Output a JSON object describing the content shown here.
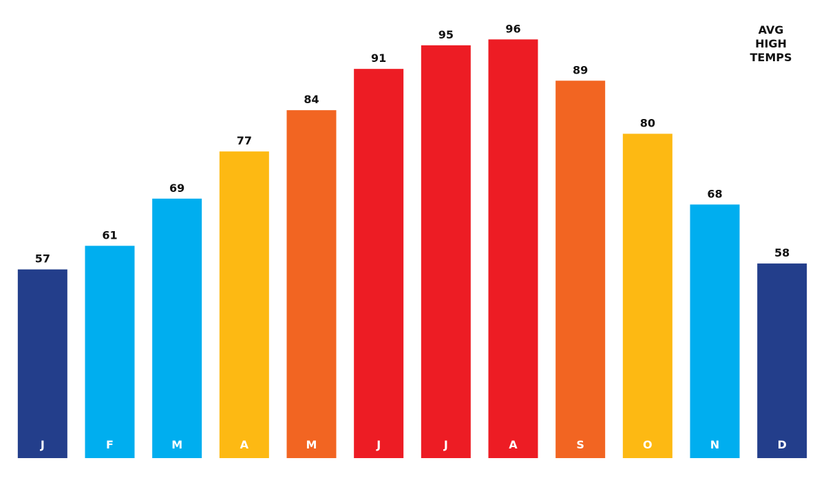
{
  "chart_data": {
    "type": "bar",
    "title": "AVG HIGH TEMPS",
    "categories": [
      "J",
      "F",
      "M",
      "A",
      "M",
      "J",
      "J",
      "A",
      "S",
      "O",
      "N",
      "D"
    ],
    "values": [
      57,
      61,
      69,
      77,
      84,
      91,
      95,
      96,
      89,
      80,
      68,
      58
    ],
    "colors": [
      "#233e8b",
      "#00aeef",
      "#00aeef",
      "#fdb913",
      "#f26522",
      "#ed1c24",
      "#ed1c24",
      "#ed1c24",
      "#f26522",
      "#fdb913",
      "#00aeef",
      "#233e8b"
    ],
    "ylim": [
      25,
      100
    ]
  }
}
